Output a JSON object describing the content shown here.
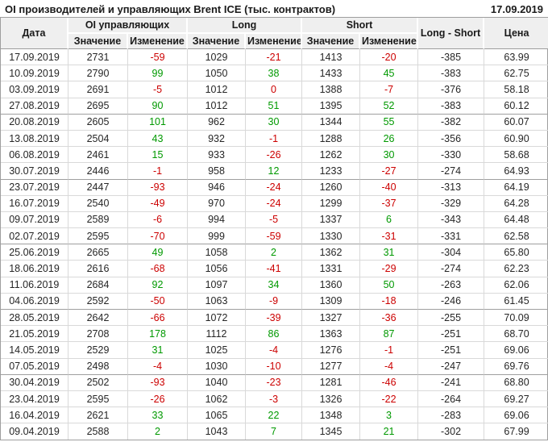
{
  "header": {
    "title": "OI производителей и управляющих Brent ICE (тыс. контрактов)",
    "report_date": "17.09.2019"
  },
  "colors": {
    "positive": "#009900",
    "negative": "#cc0000",
    "header_bg": "#efefef",
    "grid_line": "#d9d9d9",
    "group_line": "#9f9f9f"
  },
  "table": {
    "column_groups": {
      "date": "Дата",
      "oi": "OI управляющих",
      "long": "Long",
      "short": "Short",
      "long_short": "Long - Short",
      "price": "Цена"
    },
    "sub_headers": {
      "value": "Значение",
      "change": "Изменение"
    },
    "col_keys": [
      "date",
      "oi",
      "oi_chg",
      "long",
      "long_chg",
      "short",
      "short_chg",
      "long_short",
      "price"
    ],
    "change_keys": [
      "oi_chg",
      "long_chg",
      "short_chg"
    ],
    "group_size": 4,
    "rows": [
      {
        "date": "17.09.2019",
        "oi": 2731,
        "oi_chg": -59,
        "long": 1029,
        "long_chg": -21,
        "short": 1413,
        "short_chg": -20,
        "long_short": -385,
        "price": "63.99"
      },
      {
        "date": "10.09.2019",
        "oi": 2790,
        "oi_chg": 99,
        "long": 1050,
        "long_chg": 38,
        "short": 1433,
        "short_chg": 45,
        "long_short": -383,
        "price": "62.75"
      },
      {
        "date": "03.09.2019",
        "oi": 2691,
        "oi_chg": -5,
        "long": 1012,
        "long_chg": 0,
        "short": 1388,
        "short_chg": -7,
        "long_short": -376,
        "price": "58.18"
      },
      {
        "date": "27.08.2019",
        "oi": 2695,
        "oi_chg": 90,
        "long": 1012,
        "long_chg": 51,
        "short": 1395,
        "short_chg": 52,
        "long_short": -383,
        "price": "60.12"
      },
      {
        "date": "20.08.2019",
        "oi": 2605,
        "oi_chg": 101,
        "long": 962,
        "long_chg": 30,
        "short": 1344,
        "short_chg": 55,
        "long_short": -382,
        "price": "60.07"
      },
      {
        "date": "13.08.2019",
        "oi": 2504,
        "oi_chg": 43,
        "long": 932,
        "long_chg": -1,
        "short": 1288,
        "short_chg": 26,
        "long_short": -356,
        "price": "60.90"
      },
      {
        "date": "06.08.2019",
        "oi": 2461,
        "oi_chg": 15,
        "long": 933,
        "long_chg": -26,
        "short": 1262,
        "short_chg": 30,
        "long_short": -330,
        "price": "58.68"
      },
      {
        "date": "30.07.2019",
        "oi": 2446,
        "oi_chg": -1,
        "long": 958,
        "long_chg": 12,
        "short": 1233,
        "short_chg": -27,
        "long_short": -274,
        "price": "64.93"
      },
      {
        "date": "23.07.2019",
        "oi": 2447,
        "oi_chg": -93,
        "long": 946,
        "long_chg": -24,
        "short": 1260,
        "short_chg": -40,
        "long_short": -313,
        "price": "64.19"
      },
      {
        "date": "16.07.2019",
        "oi": 2540,
        "oi_chg": -49,
        "long": 970,
        "long_chg": -24,
        "short": 1299,
        "short_chg": -37,
        "long_short": -329,
        "price": "64.28"
      },
      {
        "date": "09.07.2019",
        "oi": 2589,
        "oi_chg": -6,
        "long": 994,
        "long_chg": -5,
        "short": 1337,
        "short_chg": 6,
        "long_short": -343,
        "price": "64.48"
      },
      {
        "date": "02.07.2019",
        "oi": 2595,
        "oi_chg": -70,
        "long": 999,
        "long_chg": -59,
        "short": 1330,
        "short_chg": -31,
        "long_short": -331,
        "price": "62.58"
      },
      {
        "date": "25.06.2019",
        "oi": 2665,
        "oi_chg": 49,
        "long": 1058,
        "long_chg": 2,
        "short": 1362,
        "short_chg": 31,
        "long_short": -304,
        "price": "65.80"
      },
      {
        "date": "18.06.2019",
        "oi": 2616,
        "oi_chg": -68,
        "long": 1056,
        "long_chg": -41,
        "short": 1331,
        "short_chg": -29,
        "long_short": -274,
        "price": "62.23"
      },
      {
        "date": "11.06.2019",
        "oi": 2684,
        "oi_chg": 92,
        "long": 1097,
        "long_chg": 34,
        "short": 1360,
        "short_chg": 50,
        "long_short": -263,
        "price": "62.06"
      },
      {
        "date": "04.06.2019",
        "oi": 2592,
        "oi_chg": -50,
        "long": 1063,
        "long_chg": -9,
        "short": 1309,
        "short_chg": -18,
        "long_short": -246,
        "price": "61.45"
      },
      {
        "date": "28.05.2019",
        "oi": 2642,
        "oi_chg": -66,
        "long": 1072,
        "long_chg": -39,
        "short": 1327,
        "short_chg": -36,
        "long_short": -255,
        "price": "70.09"
      },
      {
        "date": "21.05.2019",
        "oi": 2708,
        "oi_chg": 178,
        "long": 1112,
        "long_chg": 86,
        "short": 1363,
        "short_chg": 87,
        "long_short": -251,
        "price": "68.70"
      },
      {
        "date": "14.05.2019",
        "oi": 2529,
        "oi_chg": 31,
        "long": 1025,
        "long_chg": -4,
        "short": 1276,
        "short_chg": -1,
        "long_short": -251,
        "price": "69.06"
      },
      {
        "date": "07.05.2019",
        "oi": 2498,
        "oi_chg": -4,
        "long": 1030,
        "long_chg": -10,
        "short": 1277,
        "short_chg": -4,
        "long_short": -247,
        "price": "69.76"
      },
      {
        "date": "30.04.2019",
        "oi": 2502,
        "oi_chg": -93,
        "long": 1040,
        "long_chg": -23,
        "short": 1281,
        "short_chg": -46,
        "long_short": -241,
        "price": "68.80"
      },
      {
        "date": "23.04.2019",
        "oi": 2595,
        "oi_chg": -26,
        "long": 1062,
        "long_chg": -3,
        "short": 1326,
        "short_chg": -22,
        "long_short": -264,
        "price": "69.27"
      },
      {
        "date": "16.04.2019",
        "oi": 2621,
        "oi_chg": 33,
        "long": 1065,
        "long_chg": 22,
        "short": 1348,
        "short_chg": 3,
        "long_short": -283,
        "price": "69.06"
      },
      {
        "date": "09.04.2019",
        "oi": 2588,
        "oi_chg": 2,
        "long": 1043,
        "long_chg": 7,
        "short": 1345,
        "short_chg": 21,
        "long_short": -302,
        "price": "67.99"
      }
    ]
  }
}
